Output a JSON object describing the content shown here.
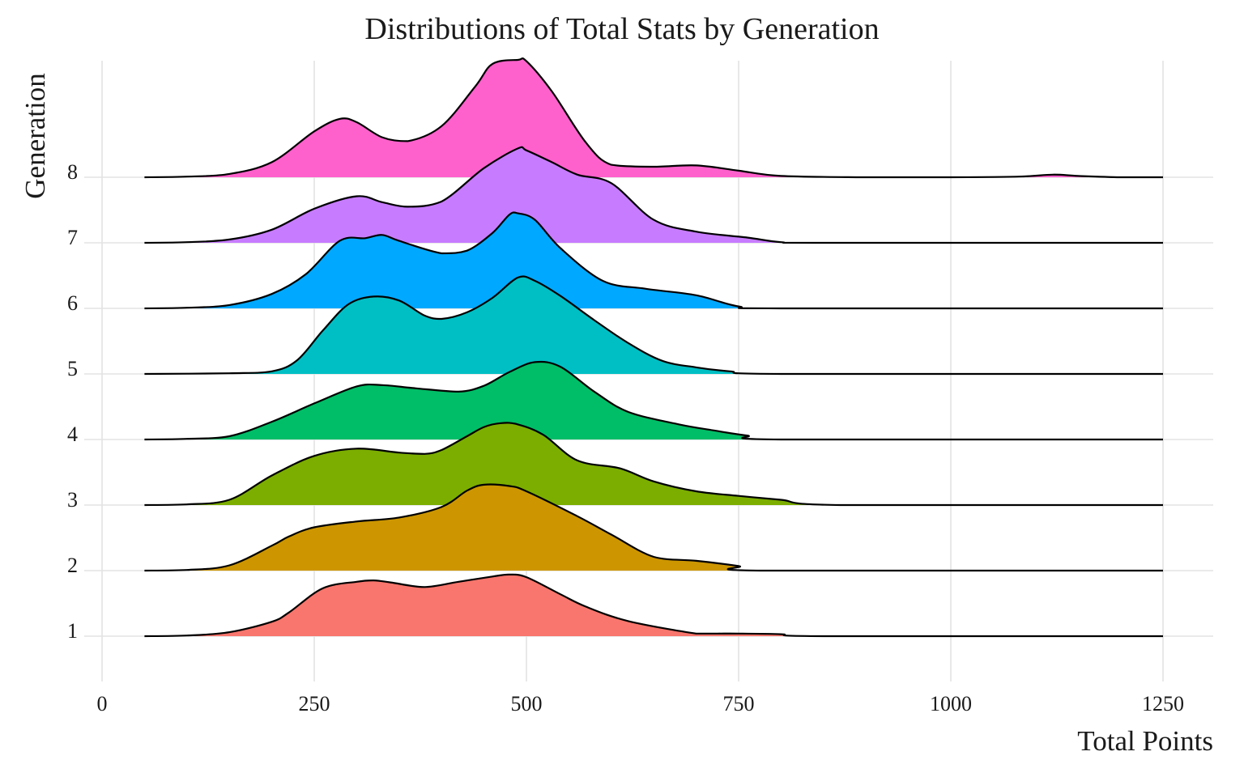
{
  "chart_data": {
    "type": "area",
    "title": "Distributions of Total Stats by Generation",
    "xlabel": "Total Points",
    "ylabel": "Generation",
    "xlim": [
      0,
      1250
    ],
    "x_ticks": [
      "0",
      "250",
      "500",
      "750",
      "1000",
      "1250"
    ],
    "y_ticks": [
      "1",
      "2",
      "3",
      "4",
      "5",
      "6",
      "7",
      "8"
    ],
    "grid": true,
    "outline_color": "#000000",
    "series": [
      {
        "name": "1",
        "color": "#F8766D",
        "x": [
          50,
          100,
          150,
          200,
          220,
          260,
          300,
          320,
          340,
          380,
          420,
          460,
          480,
          500,
          540,
          570,
          620,
          700,
          725,
          750,
          800,
          850,
          1250
        ],
        "y": [
          0,
          0.01,
          0.06,
          0.22,
          0.36,
          0.73,
          0.83,
          0.85,
          0.82,
          0.75,
          0.83,
          0.91,
          0.94,
          0.9,
          0.64,
          0.45,
          0.23,
          0.04,
          0.04,
          0.04,
          0.03,
          0,
          0
        ]
      },
      {
        "name": "2",
        "color": "#CD9600",
        "x": [
          50,
          100,
          150,
          200,
          220,
          250,
          300,
          350,
          400,
          430,
          450,
          480,
          500,
          560,
          600,
          650,
          700,
          750,
          780,
          1250
        ],
        "y": [
          0,
          0.01,
          0.08,
          0.38,
          0.52,
          0.66,
          0.75,
          0.81,
          0.97,
          1.22,
          1.31,
          1.29,
          1.21,
          0.83,
          0.55,
          0.21,
          0.15,
          0.07,
          0,
          0
        ]
      },
      {
        "name": "3",
        "color": "#7CAE00",
        "x": [
          50,
          100,
          150,
          200,
          250,
          300,
          350,
          380,
          400,
          430,
          450,
          470,
          490,
          520,
          560,
          610,
          650,
          700,
          750,
          800,
          870,
          1250
        ],
        "y": [
          0,
          0.01,
          0.08,
          0.45,
          0.75,
          0.86,
          0.8,
          0.78,
          0.84,
          1.05,
          1.19,
          1.25,
          1.23,
          1.07,
          0.68,
          0.56,
          0.36,
          0.21,
          0.14,
          0.08,
          0,
          0
        ]
      },
      {
        "name": "4",
        "color": "#00BE67",
        "x": [
          50,
          100,
          150,
          200,
          250,
          300,
          330,
          370,
          420,
          450,
          480,
          510,
          540,
          580,
          620,
          680,
          720,
          760,
          800,
          1250
        ],
        "y": [
          0,
          0.01,
          0.05,
          0.27,
          0.55,
          0.81,
          0.83,
          0.78,
          0.73,
          0.82,
          1.03,
          1.18,
          1.11,
          0.73,
          0.42,
          0.23,
          0.14,
          0.06,
          0,
          0
        ]
      },
      {
        "name": "5",
        "color": "#00BFC4",
        "x": [
          50,
          150,
          200,
          230,
          260,
          290,
          320,
          350,
          380,
          400,
          430,
          460,
          490,
          510,
          540,
          580,
          620,
          660,
          700,
          740,
          800,
          1250
        ],
        "y": [
          0,
          0.01,
          0.04,
          0.21,
          0.66,
          1.06,
          1.18,
          1.12,
          0.89,
          0.84,
          0.94,
          1.16,
          1.47,
          1.42,
          1.19,
          0.82,
          0.47,
          0.2,
          0.1,
          0.04,
          0,
          0
        ]
      },
      {
        "name": "6",
        "color": "#00A9FF",
        "x": [
          50,
          100,
          150,
          200,
          240,
          280,
          310,
          330,
          350,
          400,
          430,
          460,
          480,
          490,
          510,
          540,
          590,
          640,
          700,
          750,
          800,
          1250
        ],
        "y": [
          0,
          0.01,
          0.05,
          0.22,
          0.52,
          1.03,
          1.07,
          1.12,
          1.03,
          0.84,
          0.88,
          1.15,
          1.43,
          1.45,
          1.35,
          0.92,
          0.42,
          0.3,
          0.2,
          0.03,
          0,
          0
        ]
      },
      {
        "name": "7",
        "color": "#C77CFF",
        "x": [
          50,
          100,
          150,
          200,
          250,
          300,
          330,
          360,
          400,
          450,
          490,
          500,
          530,
          560,
          600,
          650,
          700,
          760,
          800,
          850,
          1250
        ],
        "y": [
          0,
          0.01,
          0.05,
          0.2,
          0.52,
          0.71,
          0.62,
          0.55,
          0.63,
          1.14,
          1.44,
          1.41,
          1.23,
          1.04,
          0.91,
          0.35,
          0.17,
          0.08,
          0.01,
          0,
          0
        ]
      },
      {
        "name": "8",
        "color": "#FF61CC",
        "x": [
          50,
          100,
          150,
          200,
          250,
          280,
          300,
          330,
          360,
          400,
          440,
          460,
          490,
          500,
          530,
          570,
          600,
          650,
          700,
          750,
          800,
          900,
          1000,
          1080,
          1120,
          1150,
          1200,
          1250
        ],
        "y": [
          0,
          0.01,
          0.05,
          0.23,
          0.7,
          0.89,
          0.84,
          0.61,
          0.55,
          0.78,
          1.39,
          1.73,
          1.79,
          1.77,
          1.31,
          0.53,
          0.19,
          0.16,
          0.18,
          0.1,
          0.02,
          0,
          0,
          0.01,
          0.04,
          0.02,
          0,
          0
        ]
      }
    ]
  }
}
